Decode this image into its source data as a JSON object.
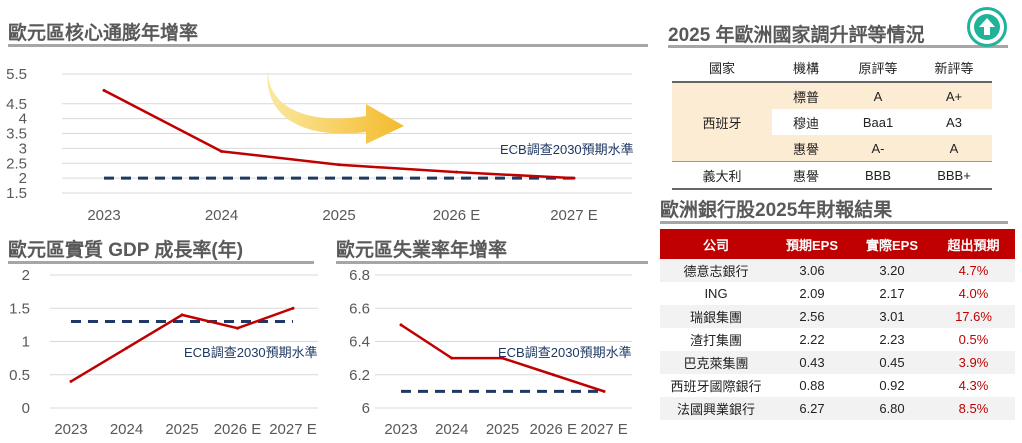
{
  "core_cpi": {
    "title": "歐元區核心通膨年增率",
    "note": "ECB調查2030預期水準"
  },
  "gdp": {
    "title": "歐元區實質 GDP 成長率(年)",
    "note": "ECB調查2030預期水準"
  },
  "unemp": {
    "title": "歐元區失業率年增率",
    "note": "ECB調查2030預期水準"
  },
  "ratings": {
    "title": "2025 年歐洲國家調升評等情況",
    "headers": [
      "國家",
      "機構",
      "原評等",
      "新評等"
    ],
    "spain_label": "西班牙",
    "rows": [
      {
        "country": "西班牙",
        "agency": "標普",
        "old": "A",
        "new": "A+"
      },
      {
        "country": "西班牙",
        "agency": "穆迪",
        "old": "Baa1",
        "new": "A3"
      },
      {
        "country": "西班牙",
        "agency": "惠譽",
        "old": "A-",
        "new": "A"
      },
      {
        "country": "義大利",
        "agency": "惠譽",
        "old": "BBB",
        "new": "BBB+"
      }
    ]
  },
  "banks": {
    "title": "歐洲銀行股2025年財報結果",
    "headers": [
      "公司",
      "預期EPS",
      "實際EPS",
      "超出預期"
    ],
    "rows": [
      {
        "company": "德意志銀行",
        "expected": "3.06",
        "actual": "3.20",
        "beat": "4.7%"
      },
      {
        "company": "ING",
        "expected": "2.09",
        "actual": "2.17",
        "beat": "4.0%"
      },
      {
        "company": "瑞銀集團",
        "expected": "2.56",
        "actual": "3.01",
        "beat": "17.6%"
      },
      {
        "company": "渣打集團",
        "expected": "2.22",
        "actual": "2.23",
        "beat": "0.5%"
      },
      {
        "company": "巴克萊集團",
        "expected": "0.43",
        "actual": "0.45",
        "beat": "3.9%"
      },
      {
        "company": "西班牙國際銀行",
        "expected": "0.88",
        "actual": "0.92",
        "beat": "4.3%"
      },
      {
        "company": "法國興業銀行",
        "expected": "6.27",
        "actual": "6.80",
        "beat": "8.5%"
      }
    ]
  },
  "icons": {
    "up_button": "up-arrow-icon",
    "trend_arrow": "curved-arrow-icon"
  },
  "colors": {
    "line": "#c00000",
    "target": "#1f3864",
    "teal": "#21b29a",
    "arrow": "#f7c843"
  },
  "chart_data": [
    {
      "type": "line",
      "title": "歐元區核心通膨年增率",
      "categories": [
        "2023",
        "2024",
        "2025",
        "2026 E",
        "2027 E"
      ],
      "series": [
        {
          "values": [
            4.95,
            2.9,
            2.45,
            2.2,
            2.0
          ]
        }
      ],
      "reference_line": {
        "label": "ECB調查2030預期水準",
        "value": 2.0
      },
      "yticks": [
        "1.5",
        "2",
        "2.5",
        "3",
        "3.5",
        "4",
        "4.5",
        "5.5"
      ],
      "ylim": [
        1.5,
        5.5
      ],
      "grid": true
    },
    {
      "type": "line",
      "title": "歐元區實質 GDP 成長率(年)",
      "categories": [
        "2023",
        "2024",
        "2025",
        "2026 E",
        "2027 E"
      ],
      "series": [
        {
          "values": [
            0.4,
            0.9,
            1.4,
            1.2,
            1.5
          ]
        }
      ],
      "reference_line": {
        "label": "ECB調查2030預期水準",
        "value": 1.3
      },
      "yticks": [
        "0",
        "0.5",
        "1",
        "1.5",
        "2"
      ],
      "ylim": [
        0,
        2
      ],
      "grid": true
    },
    {
      "type": "line",
      "title": "歐元區失業率年增率",
      "categories": [
        "2023",
        "2024",
        "2025",
        "2026 E",
        "2027 E"
      ],
      "series": [
        {
          "values": [
            6.5,
            6.3,
            6.3,
            6.2,
            6.1
          ]
        }
      ],
      "reference_line": {
        "label": "ECB調查2030預期水準",
        "value": 6.1
      },
      "yticks": [
        "6",
        "6.2",
        "6.4",
        "6.6",
        "6.8"
      ],
      "ylim": [
        6.0,
        6.8
      ],
      "grid": true
    }
  ]
}
